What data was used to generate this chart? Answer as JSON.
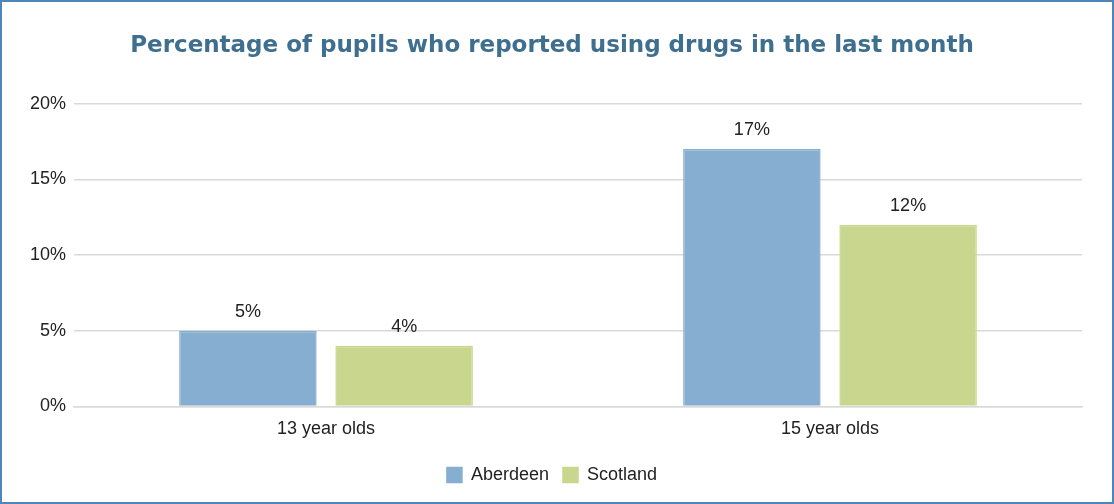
{
  "chart_data": {
    "type": "bar",
    "title": "Percentage of pupils who reported using drugs in the last month",
    "categories": [
      "13 year olds",
      "15 year olds"
    ],
    "series": [
      {
        "name": "Aberdeen",
        "color": "#86aed0",
        "values": [
          5,
          17
        ],
        "value_labels": [
          "5%",
          "17%"
        ]
      },
      {
        "name": "Scotland",
        "color": "#c8d68e",
        "values": [
          4,
          12
        ],
        "value_labels": [
          "4%",
          "12%"
        ]
      }
    ],
    "ylim": [
      0,
      20
    ],
    "yticks": [
      {
        "value": 0,
        "label": "0%"
      },
      {
        "value": 5,
        "label": "5%"
      },
      {
        "value": 10,
        "label": "10%"
      },
      {
        "value": 15,
        "label": "15%"
      },
      {
        "value": 20,
        "label": "20%"
      }
    ],
    "grid": "y",
    "legend": "bottom"
  }
}
